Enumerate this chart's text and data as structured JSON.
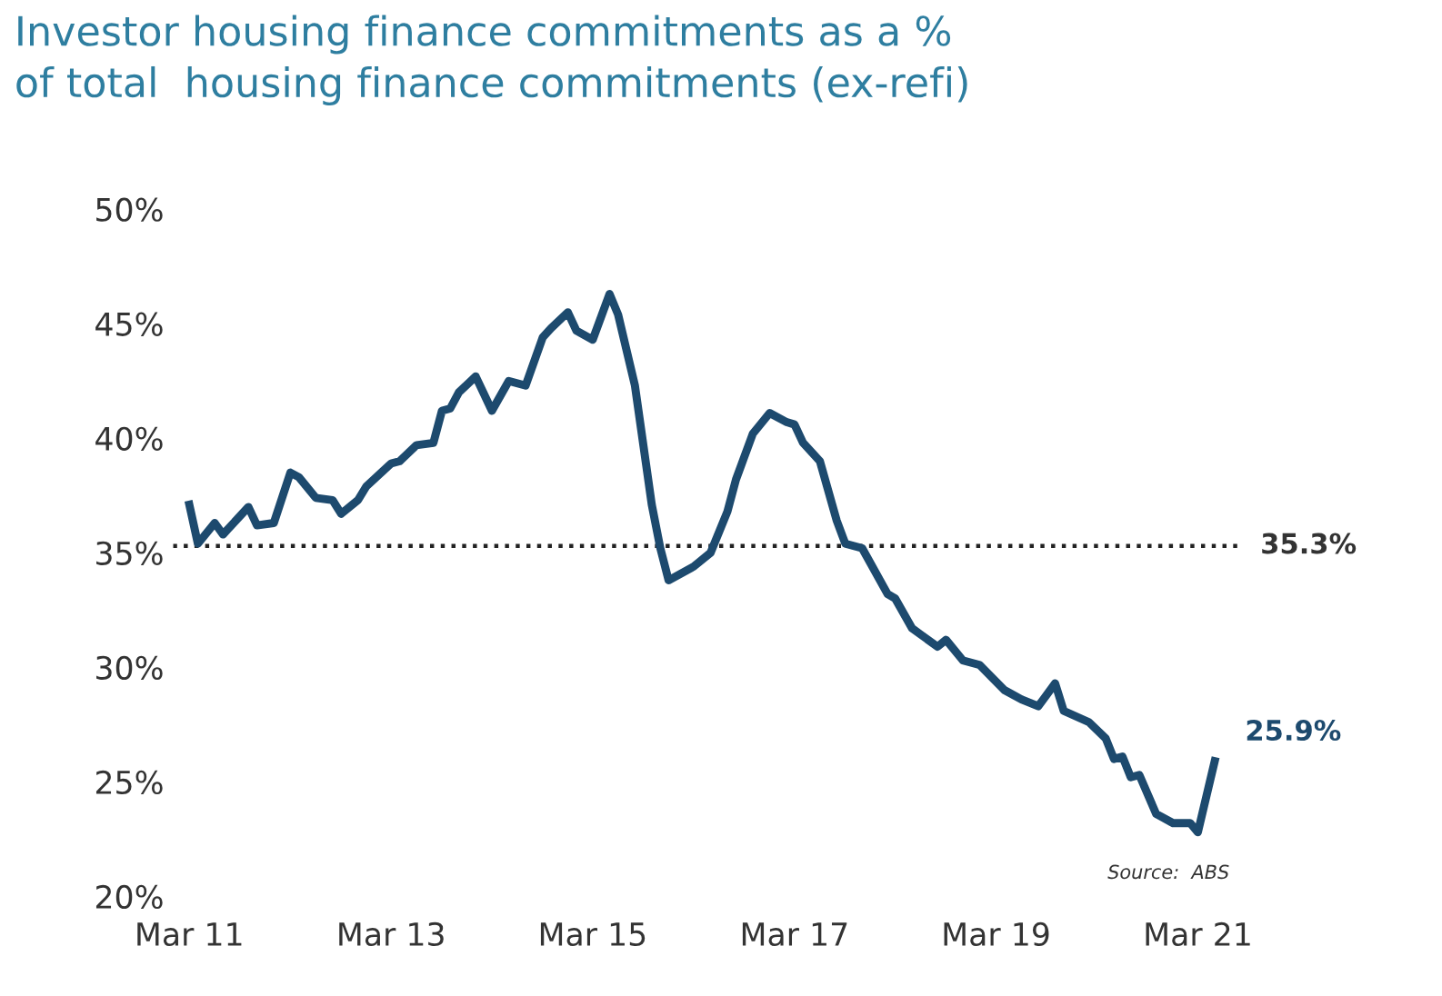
{
  "chart_data": {
    "type": "line",
    "title": "Investor housing finance commitments as a %\nof total  housing finance commitments (ex-refi)",
    "x": [
      "2011-03",
      "2011-04",
      "2011-06",
      "2011-07",
      "2011-10",
      "2011-11",
      "2012-01",
      "2012-03",
      "2012-04",
      "2012-06",
      "2012-08",
      "2012-09",
      "2012-11",
      "2012-12",
      "2013-03",
      "2013-04",
      "2013-06",
      "2013-08",
      "2013-09",
      "2013-10",
      "2013-11",
      "2014-01",
      "2014-03",
      "2014-05",
      "2014-07",
      "2014-09",
      "2014-10",
      "2014-12",
      "2015-01",
      "2015-03",
      "2015-05",
      "2015-06",
      "2015-08",
      "2015-10",
      "2015-11",
      "2015-12",
      "2016-03",
      "2016-05",
      "2016-07",
      "2016-08",
      "2016-10",
      "2016-12",
      "2017-02",
      "2017-03",
      "2017-04",
      "2017-06",
      "2017-08",
      "2017-09",
      "2017-11",
      "2018-02",
      "2018-03",
      "2018-05",
      "2018-08",
      "2018-09",
      "2018-11",
      "2019-01",
      "2019-04",
      "2019-06",
      "2019-08",
      "2019-10",
      "2019-11",
      "2020-02",
      "2020-04",
      "2020-05",
      "2020-06",
      "2020-07",
      "2020-08",
      "2020-10",
      "2020-12",
      "2021-02",
      "2021-03",
      "2021-05"
    ],
    "series": [
      {
        "color": "#1d4a6e",
        "values": [
          37.1,
          35.4,
          36.3,
          35.8,
          37.0,
          36.2,
          36.3,
          38.5,
          38.3,
          37.4,
          37.3,
          36.7,
          37.3,
          37.9,
          38.9,
          39.0,
          39.7,
          39.8,
          41.2,
          41.3,
          42.0,
          42.7,
          41.2,
          42.5,
          42.3,
          44.4,
          44.8,
          45.5,
          44.7,
          44.3,
          46.3,
          45.4,
          42.3,
          37.1,
          35.2,
          33.8,
          34.4,
          35.0,
          36.8,
          38.2,
          40.2,
          41.1,
          40.7,
          40.6,
          39.8,
          39.0,
          36.4,
          35.4,
          35.2,
          33.2,
          33.0,
          31.7,
          30.9,
          31.2,
          30.3,
          30.1,
          29.0,
          28.6,
          28.3,
          29.3,
          28.1,
          27.6,
          26.9,
          26.0,
          26.1,
          25.2,
          25.3,
          23.6,
          23.2,
          23.2,
          22.8,
          25.9
        ]
      }
    ],
    "xlim": [
      "2011-01",
      "2021-08"
    ],
    "xticks": [
      {
        "value": "2011-03",
        "label": "Mar 11"
      },
      {
        "value": "2013-03",
        "label": "Mar 13"
      },
      {
        "value": "2015-03",
        "label": "Mar 15"
      },
      {
        "value": "2017-03",
        "label": "Mar 17"
      },
      {
        "value": "2019-03",
        "label": "Mar 19"
      },
      {
        "value": "2021-03",
        "label": "Mar 21"
      }
    ],
    "ylim": [
      20,
      50
    ],
    "yticks": [
      {
        "value": 20,
        "label": "20%"
      },
      {
        "value": 25,
        "label": "25%"
      },
      {
        "value": 30,
        "label": "30%"
      },
      {
        "value": 35,
        "label": "35%"
      },
      {
        "value": 40,
        "label": "40%"
      },
      {
        "value": 45,
        "label": "45%"
      },
      {
        "value": 50,
        "label": "50%"
      }
    ],
    "ref_lines": [
      {
        "axis": "y",
        "value": 35.3,
        "label": "35.3%",
        "color": "#222222",
        "line_style": "dotted"
      }
    ],
    "annotations": [
      {
        "text": "25.9%",
        "x": "2021-05",
        "y": 25.9
      },
      "Source:  ABS"
    ],
    "grid": false,
    "line_style": "solid",
    "marker": "none"
  }
}
